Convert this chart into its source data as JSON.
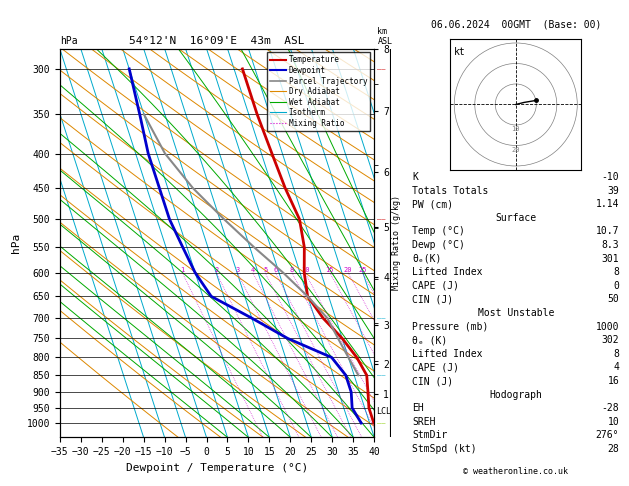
{
  "title_left": "54°12'N  16°09'E  43m  ASL",
  "title_right": "06.06.2024  00GMT  (Base: 00)",
  "xlabel": "Dewpoint / Temperature (°C)",
  "ylabel_left": "hPa",
  "pressure_levels": [
    300,
    350,
    400,
    450,
    500,
    550,
    600,
    650,
    700,
    750,
    800,
    850,
    900,
    950,
    1000
  ],
  "temp_x": [
    7,
    7,
    7.5,
    8,
    9,
    8,
    6,
    5,
    7,
    10,
    12,
    13,
    12,
    11,
    11
  ],
  "temp_p": [
    300,
    350,
    400,
    450,
    500,
    550,
    600,
    650,
    700,
    750,
    800,
    850,
    900,
    950,
    1000
  ],
  "dewp_x": [
    -20,
    -21,
    -22,
    -22,
    -22,
    -21,
    -20,
    -18,
    -10,
    -3,
    6,
    8,
    8,
    7,
    8
  ],
  "dewp_p": [
    300,
    350,
    400,
    450,
    500,
    550,
    600,
    650,
    700,
    750,
    800,
    850,
    900,
    950,
    1000
  ],
  "parcel_x": [
    -20,
    -18,
    -14,
    -9,
    -4,
    1,
    5,
    8,
    9,
    10,
    11
  ],
  "parcel_p": [
    350,
    400,
    450,
    500,
    550,
    600,
    650,
    700,
    750,
    800,
    850
  ],
  "xlim": [
    -35,
    40
  ],
  "pmin": 280,
  "pmax": 1050,
  "skew_factor": 30,
  "km_ticks": [
    1,
    2,
    3,
    4,
    5,
    6,
    7,
    8
  ],
  "km_pressures": [
    900,
    810,
    705,
    596,
    498,
    410,
    330,
    265
  ],
  "mixing_ratio_values": [
    1,
    2,
    3,
    4,
    5,
    6,
    8,
    10,
    15,
    20,
    25
  ],
  "bg_color": "#ffffff",
  "temp_color": "#cc0000",
  "dewp_color": "#0000cc",
  "parcel_color": "#888888",
  "dry_adiabat_color": "#dd8800",
  "wet_adiabat_color": "#00aa00",
  "isotherm_color": "#00aacc",
  "mixing_color": "#cc00cc",
  "copyright": "© weatheronline.co.uk",
  "lcl_label": "LCL",
  "lcl_pressure": 960,
  "gen_rows": [
    [
      "K",
      "-10"
    ],
    [
      "Totals Totals",
      "39"
    ],
    [
      "PW (cm)",
      "1.14"
    ]
  ],
  "surf_rows": [
    [
      "Temp (°C)",
      "10.7"
    ],
    [
      "Dewp (°C)",
      "8.3"
    ],
    [
      "θₑ(K)",
      "301"
    ],
    [
      "Lifted Index",
      "8"
    ],
    [
      "CAPE (J)",
      "0"
    ],
    [
      "CIN (J)",
      "50"
    ]
  ],
  "mu_rows": [
    [
      "Pressure (mb)",
      "1000"
    ],
    [
      "θₑ (K)",
      "302"
    ],
    [
      "Lifted Index",
      "8"
    ],
    [
      "CAPE (J)",
      "4"
    ],
    [
      "CIN (J)",
      "16"
    ]
  ],
  "hodo_rows": [
    [
      "EH",
      "-28"
    ],
    [
      "SREH",
      "10"
    ],
    [
      "StmDir",
      "276°"
    ],
    [
      "StmSpd (kt)",
      "28"
    ]
  ],
  "wind_levels": [
    300,
    500,
    700,
    850,
    1000
  ],
  "wind_colors": [
    "#cc0000",
    "#cc0000",
    "#00aacc",
    "#00aacc",
    "#88cc00"
  ]
}
